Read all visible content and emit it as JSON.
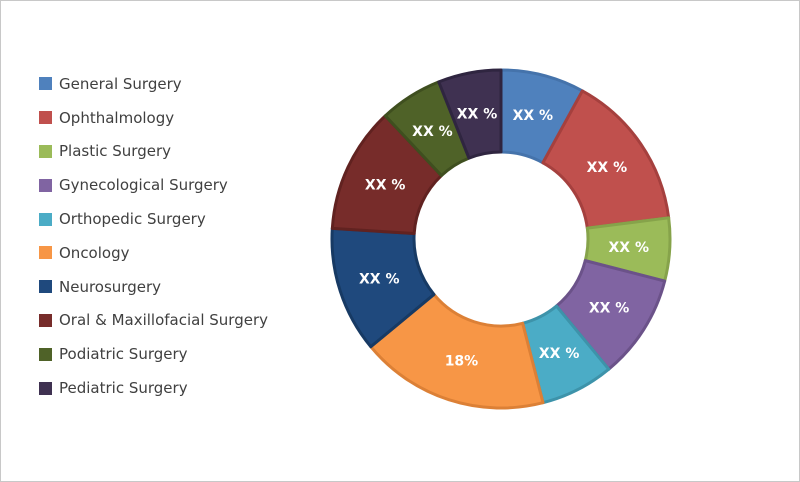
{
  "chart_data": {
    "type": "pie",
    "subtype": "donut",
    "legend_position": "left",
    "series": [
      {
        "name": "General Surgery",
        "value": 8,
        "label": "XX %",
        "color": "#4f81bd",
        "border": "#4573ab"
      },
      {
        "name": "Ophthalmology",
        "value": 15,
        "label": "XX %",
        "color": "#c0504d",
        "border": "#a5403e"
      },
      {
        "name": "Plastic Surgery",
        "value": 6,
        "label": "XX %",
        "color": "#9bbb59",
        "border": "#86a34a"
      },
      {
        "name": "Gynecological Surgery",
        "value": 10,
        "label": "XX %",
        "color": "#8064a2",
        "border": "#6b5289"
      },
      {
        "name": "Orthopedic Surgery",
        "value": 7,
        "label": "XX %",
        "color": "#4bacc6",
        "border": "#3d93aa"
      },
      {
        "name": "Oncology",
        "value": 18,
        "label": "18%",
        "color": "#f79646",
        "border": "#dc8036"
      },
      {
        "name": "Neurosurgery",
        "value": 12,
        "label": "XX %",
        "color": "#1f497d",
        "border": "#173a64"
      },
      {
        "name": "Oral & Maxillofacial Surgery",
        "value": 12,
        "label": "XX %",
        "color": "#772c2a",
        "border": "#612220"
      },
      {
        "name": "Podiatric Surgery",
        "value": 6,
        "label": "XX %",
        "color": "#4f6228",
        "border": "#3f4f1f"
      },
      {
        "name": "Pediatric Surgery",
        "value": 6,
        "label": "XX %",
        "color": "#3f3151",
        "border": "#2f2540"
      }
    ]
  }
}
